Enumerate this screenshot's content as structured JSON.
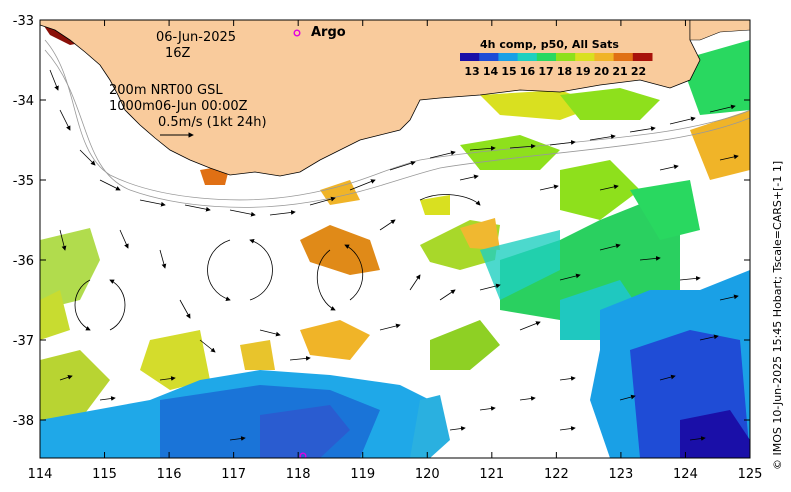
{
  "map": {
    "date": "06-Jun-2025",
    "time": "16Z",
    "depth_line1": "200m  NRT00 GSL",
    "depth_line2": "1000m06-Jun 00:00Z",
    "scale_text": "0.5m/s (1kt 24h)",
    "argo_label": "Argo",
    "colorbar_title": "4h comp, p50, All Sats",
    "colorbar_ticks": [
      "13",
      "14",
      "15",
      "16",
      "17",
      "18",
      "19",
      "20",
      "21",
      "22"
    ],
    "colorbar_colors": [
      "#1a0fa8",
      "#1f4cd6",
      "#1aa0e6",
      "#1fd0c0",
      "#29d860",
      "#8ee01c",
      "#d9e020",
      "#f0b428",
      "#e07014",
      "#a8120a"
    ],
    "x_ticks": [
      "114",
      "115",
      "116",
      "117",
      "118",
      "119",
      "120",
      "121",
      "122",
      "123",
      "124",
      "125"
    ],
    "y_ticks": [
      "-33",
      "-34",
      "-35",
      "-36",
      "-37",
      "-38"
    ],
    "credit": "© IMOS 10-Jun-2025 15:45 Hobart; Tscale=CARS+[-1 1]",
    "land_color": "#f9cb9c"
  }
}
